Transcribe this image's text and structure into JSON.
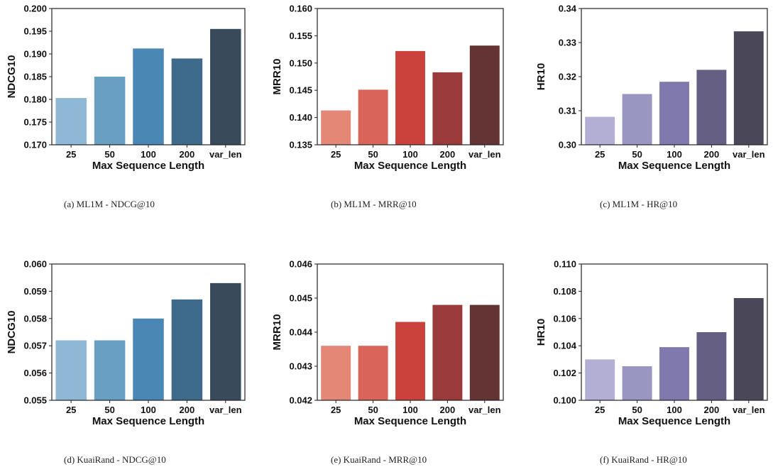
{
  "chart_data": [
    {
      "type": "bar",
      "caption": "(a)  ML1M - NDCG@10",
      "categories": [
        "25",
        "50",
        "100",
        "200",
        "var_len"
      ],
      "values": [
        0.1803,
        0.185,
        0.1912,
        0.189,
        0.1955
      ],
      "colors": [
        "#8fb7d6",
        "#6a9fc4",
        "#4a87b5",
        "#3e6a8b",
        "#394b5b"
      ],
      "xlabel": "Max Sequence Length",
      "ylabel": "NDCG10",
      "ylim": [
        0.17,
        0.2
      ],
      "yticks": [
        "0.170",
        "0.175",
        "0.180",
        "0.185",
        "0.190",
        "0.195",
        "0.200"
      ]
    },
    {
      "type": "bar",
      "caption": "(b)  ML1M - MRR@10",
      "categories": [
        "25",
        "50",
        "100",
        "200",
        "var_len"
      ],
      "values": [
        0.1413,
        0.1451,
        0.1522,
        0.1483,
        0.1532
      ],
      "colors": [
        "#e58777",
        "#d9645a",
        "#cb423c",
        "#9a3a3a",
        "#643334"
      ],
      "xlabel": "Max Sequence Length",
      "ylabel": "MRR10",
      "ylim": [
        0.135,
        0.16
      ],
      "yticks": [
        "0.135",
        "0.140",
        "0.145",
        "0.150",
        "0.155",
        "0.160"
      ]
    },
    {
      "type": "bar",
      "caption": "(c)  ML1M - HR@10",
      "categories": [
        "25",
        "50",
        "100",
        "200",
        "var_len"
      ],
      "values": [
        0.3082,
        0.3149,
        0.3185,
        0.322,
        0.3333
      ],
      "colors": [
        "#b2aed4",
        "#9a96c2",
        "#7f79ae",
        "#655f84",
        "#4a4759"
      ],
      "xlabel": "Max Sequence Length",
      "ylabel": "HR10",
      "ylim": [
        0.3,
        0.34
      ],
      "yticks": [
        "0.30",
        "0.31",
        "0.32",
        "0.33",
        "0.34"
      ]
    },
    {
      "type": "bar",
      "caption": "(d)  KuaiRand - NDCG@10",
      "categories": [
        "25",
        "50",
        "100",
        "200",
        "var_len"
      ],
      "values": [
        0.0572,
        0.0572,
        0.058,
        0.0587,
        0.0593
      ],
      "colors": [
        "#8fb7d6",
        "#6a9fc4",
        "#4a87b5",
        "#3e6a8b",
        "#394b5b"
      ],
      "xlabel": "Max Sequence Length",
      "ylabel": "NDCG10",
      "ylim": [
        0.055,
        0.06
      ],
      "yticks": [
        "0.055",
        "0.056",
        "0.057",
        "0.058",
        "0.059",
        "0.060"
      ]
    },
    {
      "type": "bar",
      "caption": "(e)  KuaiRand - MRR@10",
      "categories": [
        "25",
        "50",
        "100",
        "200",
        "var_len"
      ],
      "values": [
        0.0436,
        0.0436,
        0.0443,
        0.0448,
        0.0448
      ],
      "colors": [
        "#e58777",
        "#d9645a",
        "#cb423c",
        "#9a3a3a",
        "#643334"
      ],
      "xlabel": "Max Sequence Length",
      "ylabel": "MRR10",
      "ylim": [
        0.042,
        0.046
      ],
      "yticks": [
        "0.042",
        "0.043",
        "0.044",
        "0.045",
        "0.046"
      ]
    },
    {
      "type": "bar",
      "caption": "(f)  KuaiRand - HR@10",
      "categories": [
        "25",
        "50",
        "100",
        "200",
        "var_len"
      ],
      "values": [
        0.103,
        0.1025,
        0.1039,
        0.105,
        0.1075
      ],
      "colors": [
        "#b2aed4",
        "#9a96c2",
        "#7f79ae",
        "#655f84",
        "#4a4759"
      ],
      "xlabel": "Max Sequence Length",
      "ylabel": "HR10",
      "ylim": [
        0.1,
        0.11
      ],
      "yticks": [
        "0.100",
        "0.102",
        "0.104",
        "0.106",
        "0.108",
        "0.110"
      ]
    }
  ]
}
